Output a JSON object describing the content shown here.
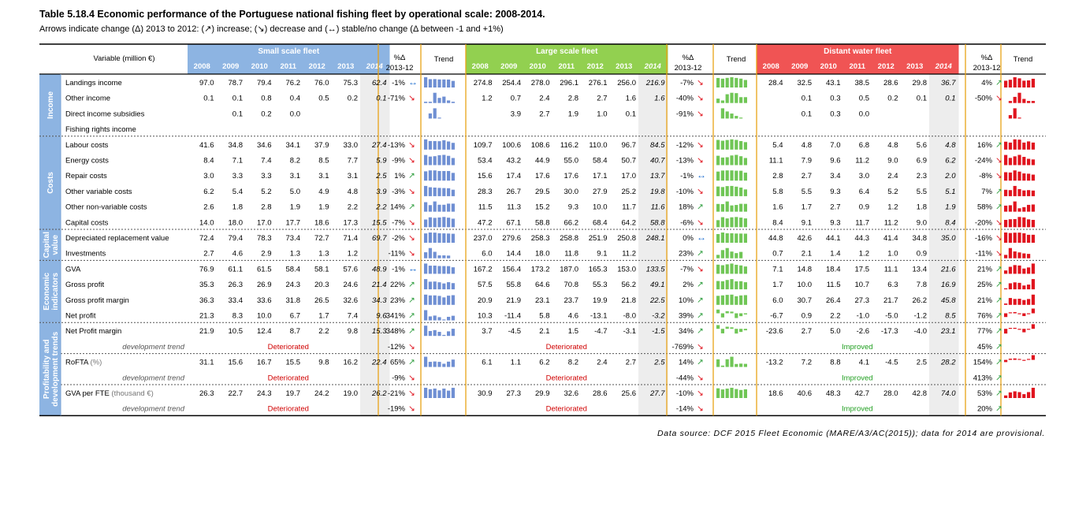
{
  "title": "Table 5.18.4 Economic performance of the Portuguese national fishing fleet by operational scale: 2008-2014.",
  "subtitle": "Arrows indicate change (Δ) 2013 to 2012: (↗) increase; (↘) decrease and (↔) stable/no change (Δ between -1 and +1%)",
  "source": "Data source: DCF 2015 Fleet Economic (MARE/A3/AC(2015)); data for 2014 are provisional.",
  "header": {
    "variable": "Variable (million €)",
    "pct_line1": "%Δ",
    "pct_line2": "2013-12",
    "trend": "Trend"
  },
  "colors": {
    "small": "#8DB4E2",
    "large": "#92D050",
    "distant": "#F05454",
    "sidebar": "#8DB4E2",
    "sep": "#E8A317",
    "trend_blue": "#6F8FD3",
    "trend_green": "#70C656",
    "trend_red": "#E0141E",
    "up_arrow": "#2E9E3E",
    "down_arrow": "#E0141E",
    "stable_arrow": "#1F6FD0",
    "provisional_bg": "#EDEDED",
    "dev_text": "#D00000",
    "improved_text": "#1E9E1E"
  },
  "chart_data": {
    "type": "table",
    "years": [
      "2008",
      "2009",
      "2010",
      "2011",
      "2012",
      "2013",
      "2014"
    ],
    "fleets": [
      {
        "key": "small",
        "name": "Small scale fleet"
      },
      {
        "key": "large",
        "name": "Large scale fleet"
      },
      {
        "key": "distant",
        "name": "Distant water fleet"
      }
    ],
    "groups": [
      {
        "name": "Income",
        "rows": [
          0,
          3
        ]
      },
      {
        "name": "Costs",
        "rows": [
          4,
          9
        ]
      },
      {
        "name": "Capital value",
        "rows": [
          10,
          11
        ]
      },
      {
        "name": "Economic indicators",
        "rows": [
          12,
          15
        ]
      },
      {
        "name": "Profitability and development trends",
        "rows": [
          16,
          21
        ]
      }
    ],
    "rows": [
      {
        "label": "Landings income",
        "small": {
          "v": [
            "97.0",
            "78.7",
            "79.4",
            "76.2",
            "76.0",
            "75.3",
            "62.4"
          ],
          "pct": "-1%",
          "arrow": "stable"
        },
        "large": {
          "v": [
            "274.8",
            "254.4",
            "278.0",
            "296.1",
            "276.1",
            "256.0",
            "216.9"
          ],
          "pct": "-7%",
          "arrow": "down"
        },
        "distant": {
          "v": [
            "28.4",
            "32.5",
            "43.1",
            "38.5",
            "28.6",
            "29.8",
            "36.7"
          ],
          "pct": "4%",
          "arrow": "up"
        }
      },
      {
        "label": "Other income",
        "small": {
          "v": [
            "0.1",
            "0.1",
            "0.8",
            "0.4",
            "0.5",
            "0.2",
            "0.1"
          ],
          "pct": "-71%",
          "arrow": "down"
        },
        "large": {
          "v": [
            "1.2",
            "0.7",
            "2.4",
            "2.8",
            "2.7",
            "1.6",
            "1.6"
          ],
          "pct": "-40%",
          "arrow": "down"
        },
        "distant": {
          "v": [
            "",
            "0.1",
            "0.3",
            "0.5",
            "0.2",
            "0.1",
            "0.1"
          ],
          "pct": "-50%",
          "arrow": "down"
        }
      },
      {
        "label": "Direct income subsidies",
        "small": {
          "v": [
            "",
            "0.1",
            "0.2",
            "0.0",
            "",
            "",
            ""
          ],
          "pct": "",
          "arrow": ""
        },
        "large": {
          "v": [
            "",
            "3.9",
            "2.7",
            "1.9",
            "1.0",
            "0.1",
            ""
          ],
          "pct": "-91%",
          "arrow": "down"
        },
        "distant": {
          "v": [
            "",
            "0.1",
            "0.3",
            "0.0",
            "",
            "",
            ""
          ],
          "pct": "",
          "arrow": ""
        }
      },
      {
        "label": "Fishing rights income",
        "small": {
          "v": [
            "",
            "",
            "",
            "",
            "",
            "",
            ""
          ],
          "pct": "",
          "arrow": ""
        },
        "large": {
          "v": [
            "",
            "",
            "",
            "",
            "",
            "",
            ""
          ],
          "pct": "",
          "arrow": ""
        },
        "distant": {
          "v": [
            "",
            "",
            "",
            "",
            "",
            "",
            ""
          ],
          "pct": "",
          "arrow": ""
        }
      },
      {
        "label": "Labour costs",
        "small": {
          "v": [
            "41.6",
            "34.8",
            "34.6",
            "34.1",
            "37.9",
            "33.0",
            "27.4"
          ],
          "pct": "-13%",
          "arrow": "down"
        },
        "large": {
          "v": [
            "109.7",
            "100.6",
            "108.6",
            "116.2",
            "110.0",
            "96.7",
            "84.5"
          ],
          "pct": "-12%",
          "arrow": "down"
        },
        "distant": {
          "v": [
            "5.4",
            "4.8",
            "7.0",
            "6.8",
            "4.8",
            "5.6",
            "4.8"
          ],
          "pct": "16%",
          "arrow": "up"
        }
      },
      {
        "label": "Energy costs",
        "small": {
          "v": [
            "8.4",
            "7.1",
            "7.4",
            "8.2",
            "8.5",
            "7.7",
            "5.9"
          ],
          "pct": "-9%",
          "arrow": "down"
        },
        "large": {
          "v": [
            "53.4",
            "43.2",
            "44.9",
            "55.0",
            "58.4",
            "50.7",
            "40.7"
          ],
          "pct": "-13%",
          "arrow": "down"
        },
        "distant": {
          "v": [
            "11.1",
            "7.9",
            "9.6",
            "11.2",
            "9.0",
            "6.9",
            "6.2"
          ],
          "pct": "-24%",
          "arrow": "down"
        }
      },
      {
        "label": "Repair costs",
        "small": {
          "v": [
            "3.0",
            "3.3",
            "3.3",
            "3.1",
            "3.1",
            "3.1",
            "2.5"
          ],
          "pct": "1%",
          "arrow": "up"
        },
        "large": {
          "v": [
            "15.6",
            "17.4",
            "17.6",
            "17.6",
            "17.1",
            "17.0",
            "13.7"
          ],
          "pct": "-1%",
          "arrow": "stable"
        },
        "distant": {
          "v": [
            "2.8",
            "2.7",
            "3.4",
            "3.0",
            "2.4",
            "2.3",
            "2.0"
          ],
          "pct": "-8%",
          "arrow": "down"
        }
      },
      {
        "label": "Other variable costs",
        "small": {
          "v": [
            "6.2",
            "5.4",
            "5.2",
            "5.0",
            "4.9",
            "4.8",
            "3.9"
          ],
          "pct": "-3%",
          "arrow": "down"
        },
        "large": {
          "v": [
            "28.3",
            "26.7",
            "29.5",
            "30.0",
            "27.9",
            "25.2",
            "19.8"
          ],
          "pct": "-10%",
          "arrow": "down"
        },
        "distant": {
          "v": [
            "5.8",
            "5.5",
            "9.3",
            "6.4",
            "5.2",
            "5.5",
            "5.1"
          ],
          "pct": "7%",
          "arrow": "up"
        }
      },
      {
        "label": "Other non-variable costs",
        "small": {
          "v": [
            "2.6",
            "1.8",
            "2.8",
            "1.9",
            "1.9",
            "2.2",
            "2.2"
          ],
          "pct": "14%",
          "arrow": "up"
        },
        "large": {
          "v": [
            "11.5",
            "11.3",
            "15.2",
            "9.3",
            "10.0",
            "11.7",
            "11.6"
          ],
          "pct": "18%",
          "arrow": "up"
        },
        "distant": {
          "v": [
            "1.6",
            "1.7",
            "2.7",
            "0.9",
            "1.2",
            "1.8",
            "1.9"
          ],
          "pct": "58%",
          "arrow": "up"
        }
      },
      {
        "label": "Capital costs",
        "small": {
          "v": [
            "14.0",
            "18.0",
            "17.0",
            "17.7",
            "18.6",
            "17.3",
            "15.5"
          ],
          "pct": "-7%",
          "arrow": "down"
        },
        "large": {
          "v": [
            "47.2",
            "67.1",
            "58.8",
            "66.2",
            "68.4",
            "64.2",
            "58.8"
          ],
          "pct": "-6%",
          "arrow": "down"
        },
        "distant": {
          "v": [
            "8.4",
            "9.1",
            "9.3",
            "11.7",
            "11.2",
            "9.0",
            "8.4"
          ],
          "pct": "-20%",
          "arrow": "down"
        }
      },
      {
        "label": "Depreciated replacement value",
        "small": {
          "v": [
            "72.4",
            "79.4",
            "78.3",
            "73.4",
            "72.7",
            "71.4",
            "69.7"
          ],
          "pct": "-2%",
          "arrow": "down"
        },
        "large": {
          "v": [
            "237.0",
            "279.6",
            "258.3",
            "258.8",
            "251.9",
            "250.8",
            "248.1"
          ],
          "pct": "0%",
          "arrow": "stable"
        },
        "distant": {
          "v": [
            "44.8",
            "42.6",
            "44.1",
            "44.3",
            "41.4",
            "34.8",
            "35.0"
          ],
          "pct": "-16%",
          "arrow": "down"
        }
      },
      {
        "label": "Investments",
        "small": {
          "v": [
            "2.7",
            "4.6",
            "2.9",
            "1.3",
            "1.3",
            "1.2",
            ""
          ],
          "pct": "-11%",
          "arrow": "down"
        },
        "large": {
          "v": [
            "6.0",
            "14.4",
            "18.0",
            "11.8",
            "9.1",
            "11.2",
            ""
          ],
          "pct": "23%",
          "arrow": "up"
        },
        "distant": {
          "v": [
            "0.7",
            "2.1",
            "1.4",
            "1.2",
            "1.0",
            "0.9",
            ""
          ],
          "pct": "-11%",
          "arrow": "down"
        }
      },
      {
        "label": "GVA",
        "small": {
          "v": [
            "76.9",
            "61.1",
            "61.5",
            "58.4",
            "58.1",
            "57.6",
            "48.9"
          ],
          "pct": "-1%",
          "arrow": "stable"
        },
        "large": {
          "v": [
            "167.2",
            "156.4",
            "173.2",
            "187.0",
            "165.3",
            "153.0",
            "133.5"
          ],
          "pct": "-7%",
          "arrow": "down"
        },
        "distant": {
          "v": [
            "7.1",
            "14.8",
            "18.4",
            "17.5",
            "11.1",
            "13.4",
            "21.6"
          ],
          "pct": "21%",
          "arrow": "up"
        }
      },
      {
        "label": "Gross profit",
        "small": {
          "v": [
            "35.3",
            "26.3",
            "26.9",
            "24.3",
            "20.3",
            "24.6",
            "21.4"
          ],
          "pct": "22%",
          "arrow": "up"
        },
        "large": {
          "v": [
            "57.5",
            "55.8",
            "64.6",
            "70.8",
            "55.3",
            "56.2",
            "49.1"
          ],
          "pct": "2%",
          "arrow": "up"
        },
        "distant": {
          "v": [
            "1.7",
            "10.0",
            "11.5",
            "10.7",
            "6.3",
            "7.8",
            "16.9"
          ],
          "pct": "25%",
          "arrow": "up"
        }
      },
      {
        "label": "Gross profit margin",
        "small": {
          "v": [
            "36.3",
            "33.4",
            "33.6",
            "31.8",
            "26.5",
            "32.6",
            "34.3"
          ],
          "pct": "23%",
          "arrow": "up"
        },
        "large": {
          "v": [
            "20.9",
            "21.9",
            "23.1",
            "23.7",
            "19.9",
            "21.8",
            "22.5"
          ],
          "pct": "10%",
          "arrow": "up"
        },
        "distant": {
          "v": [
            "6.0",
            "30.7",
            "26.4",
            "27.3",
            "21.7",
            "26.2",
            "45.8"
          ],
          "pct": "21%",
          "arrow": "up"
        }
      },
      {
        "label": "Net profit",
        "small": {
          "v": [
            "21.3",
            "8.3",
            "10.0",
            "6.7",
            "1.7",
            "7.4",
            "9.6"
          ],
          "pct": "341%",
          "arrow": "up"
        },
        "large": {
          "v": [
            "10.3",
            "-11.4",
            "5.8",
            "4.6",
            "-13.1",
            "-8.0",
            "-3.2"
          ],
          "pct": "39%",
          "arrow": "up"
        },
        "distant": {
          "v": [
            "-6.7",
            "0.9",
            "2.2",
            "-1.0",
            "-5.0",
            "-1.2",
            "8.5"
          ],
          "pct": "76%",
          "arrow": "up"
        }
      },
      {
        "label": "Net Profit margin",
        "small": {
          "v": [
            "21.9",
            "10.5",
            "12.4",
            "8.7",
            "2.2",
            "9.8",
            "15.3"
          ],
          "pct": "348%",
          "arrow": "up"
        },
        "large": {
          "v": [
            "3.7",
            "-4.5",
            "2.1",
            "1.5",
            "-4.7",
            "-3.1",
            "-1.5"
          ],
          "pct": "34%",
          "arrow": "up"
        },
        "distant": {
          "v": [
            "-23.6",
            "2.7",
            "5.0",
            "-2.6",
            "-17.3",
            "-4.0",
            "23.1"
          ],
          "pct": "77%",
          "arrow": "up"
        }
      },
      {
        "label": "development trend",
        "dev": true,
        "small": {
          "text": "Deteriorated",
          "pct": "-12%",
          "arrow": "down"
        },
        "large": {
          "text": "Deteriorated",
          "pct": "-769%",
          "arrow": "down"
        },
        "distant": {
          "text": "Improved",
          "pct": "45%",
          "arrow": "up"
        }
      },
      {
        "label": "RoFTA",
        "suffix": " (%)",
        "small": {
          "v": [
            "31.1",
            "15.6",
            "16.7",
            "15.5",
            "9.8",
            "16.2",
            "22.4"
          ],
          "pct": "65%",
          "arrow": "up"
        },
        "large": {
          "v": [
            "6.1",
            "1.1",
            "6.2",
            "8.2",
            "2.4",
            "2.7",
            "2.5"
          ],
          "pct": "14%",
          "arrow": "up"
        },
        "distant": {
          "v": [
            "-13.2",
            "7.2",
            "8.8",
            "4.1",
            "-4.5",
            "2.5",
            "28.2"
          ],
          "pct": "154%",
          "arrow": "up"
        }
      },
      {
        "label": "development trend",
        "dev": true,
        "small": {
          "text": "Deteriorated",
          "pct": "-9%",
          "arrow": "down"
        },
        "large": {
          "text": "Deteriorated",
          "pct": "-44%",
          "arrow": "down"
        },
        "distant": {
          "text": "Improved",
          "pct": "413%",
          "arrow": "up"
        }
      },
      {
        "label": "GVA per FTE",
        "suffix": " (thousand €)",
        "small": {
          "v": [
            "26.3",
            "22.7",
            "24.3",
            "19.7",
            "24.2",
            "19.0",
            "26.2"
          ],
          "pct": "-21%",
          "arrow": "down"
        },
        "large": {
          "v": [
            "30.9",
            "27.3",
            "29.9",
            "32.6",
            "28.6",
            "25.6",
            "27.7"
          ],
          "pct": "-10%",
          "arrow": "down"
        },
        "distant": {
          "v": [
            "18.6",
            "40.6",
            "48.3",
            "42.7",
            "28.0",
            "42.8",
            "74.0"
          ],
          "pct": "53%",
          "arrow": "up"
        }
      },
      {
        "label": "development trend",
        "dev": true,
        "small": {
          "text": "Deteriorated",
          "pct": "-19%",
          "arrow": "down"
        },
        "large": {
          "text": "Deteriorated",
          "pct": "-14%",
          "arrow": "down"
        },
        "distant": {
          "text": "Improved",
          "pct": "20%",
          "arrow": "up"
        }
      }
    ]
  }
}
